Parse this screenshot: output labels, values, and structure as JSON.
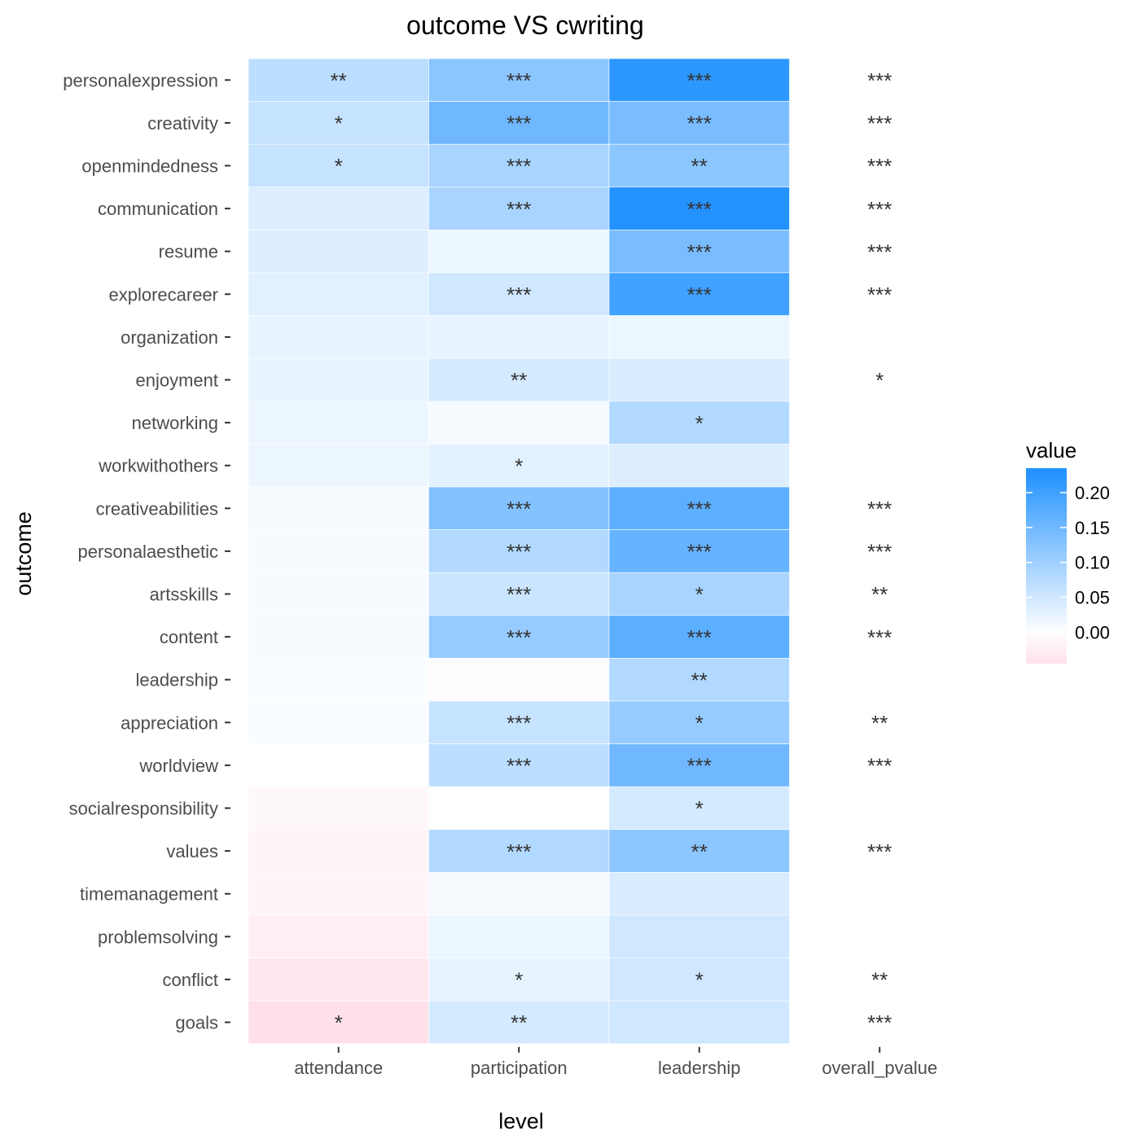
{
  "chart_data": {
    "type": "heatmap",
    "title": "outcome VS cwriting",
    "xlabel": "level",
    "ylabel": "outcome",
    "x": [
      "attendance",
      "participation",
      "leadership",
      "overall_pvalue"
    ],
    "y": [
      "personalexpression",
      "creativity",
      "openmindedness",
      "communication",
      "resume",
      "explorecareer",
      "organization",
      "enjoyment",
      "networking",
      "workwithothers",
      "creativeabilities",
      "personalaesthetic",
      "artsskills",
      "content",
      "leadership",
      "appreciation",
      "worldview",
      "socialresponsibility",
      "values",
      "timemanagement",
      "problemsolving",
      "conflict",
      "goals"
    ],
    "values": [
      [
        0.07,
        0.12,
        0.22,
        null
      ],
      [
        0.06,
        0.15,
        0.14,
        null
      ],
      [
        0.06,
        0.09,
        0.12,
        null
      ],
      [
        0.035,
        0.09,
        0.23,
        null
      ],
      [
        0.035,
        0.02,
        0.14,
        null
      ],
      [
        0.03,
        0.05,
        0.2,
        null
      ],
      [
        0.025,
        0.025,
        0.02,
        null
      ],
      [
        0.025,
        0.045,
        0.04,
        null
      ],
      [
        0.02,
        0.01,
        0.08,
        null
      ],
      [
        0.02,
        0.03,
        0.035,
        null
      ],
      [
        0.01,
        0.13,
        0.17,
        null
      ],
      [
        0.008,
        0.08,
        0.16,
        null
      ],
      [
        0.008,
        0.055,
        0.09,
        null
      ],
      [
        0.008,
        0.11,
        0.17,
        null
      ],
      [
        0.005,
        -0.005,
        0.08,
        null
      ],
      [
        0.005,
        0.06,
        0.11,
        null
      ],
      [
        0.0,
        0.07,
        0.15,
        null
      ],
      [
        -0.01,
        0.0,
        0.045,
        null
      ],
      [
        -0.015,
        0.08,
        0.12,
        null
      ],
      [
        -0.015,
        0.01,
        0.04,
        null
      ],
      [
        -0.025,
        0.02,
        0.05,
        null
      ],
      [
        -0.035,
        0.025,
        0.05,
        null
      ],
      [
        -0.045,
        0.045,
        0.05,
        null
      ]
    ],
    "significance": [
      [
        "**",
        "***",
        "***",
        "***"
      ],
      [
        "*",
        "***",
        "***",
        "***"
      ],
      [
        "*",
        "***",
        "**",
        "***"
      ],
      [
        "",
        "***",
        "***",
        "***"
      ],
      [
        "",
        "",
        "***",
        "***"
      ],
      [
        "",
        "***",
        "***",
        "***"
      ],
      [
        "",
        "",
        "",
        ""
      ],
      [
        "",
        "**",
        "",
        "*"
      ],
      [
        "",
        "",
        "*",
        ""
      ],
      [
        "",
        "*",
        "",
        ""
      ],
      [
        "",
        "***",
        "***",
        "***"
      ],
      [
        "",
        "***",
        "***",
        "***"
      ],
      [
        "",
        "***",
        "*",
        "**"
      ],
      [
        "",
        "***",
        "***",
        "***"
      ],
      [
        "",
        "",
        "**",
        ""
      ],
      [
        "",
        "***",
        "*",
        "**"
      ],
      [
        "",
        "***",
        "***",
        "***"
      ],
      [
        "",
        "",
        "*",
        ""
      ],
      [
        "",
        "***",
        "**",
        "***"
      ],
      [
        "",
        "",
        "",
        ""
      ],
      [
        "",
        "",
        "",
        ""
      ],
      [
        "",
        "*",
        "*",
        "**"
      ],
      [
        "*",
        "**",
        "",
        "***"
      ]
    ],
    "legend": {
      "title": "value",
      "position": "right",
      "ticks": [
        0.2,
        0.15,
        0.1,
        0.05,
        0.0
      ],
      "tick_labels": [
        "0.20",
        "0.15",
        "0.10",
        "0.05",
        "0.00"
      ],
      "range": [
        -0.045,
        0.235
      ]
    },
    "colors": {
      "low": "#ffe0e9",
      "mid": "#ffffff",
      "high": "#1e90ff"
    },
    "grid": false
  }
}
